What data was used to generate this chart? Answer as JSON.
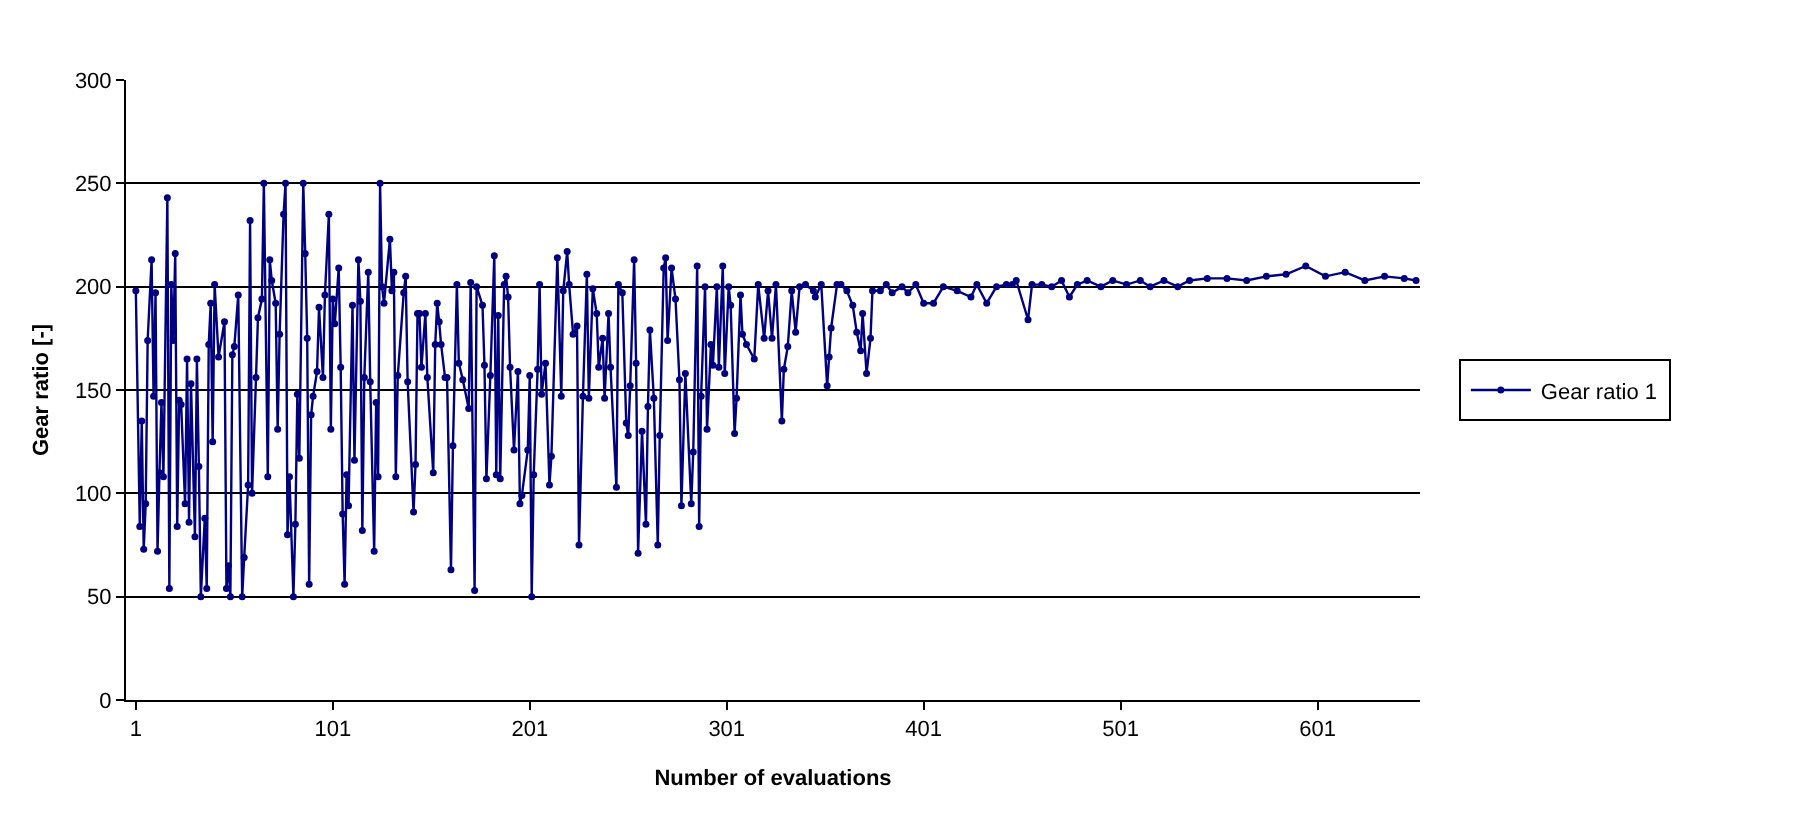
{
  "chart_data": {
    "type": "line",
    "xlabel": "Number of evaluations",
    "ylabel": "Gear ratio [-]",
    "xlim": [
      -4,
      653
    ],
    "xticks": [
      1,
      101,
      201,
      301,
      401,
      501,
      601
    ],
    "ylim": [
      0,
      300
    ],
    "yticks": [
      0,
      50,
      100,
      150,
      200,
      250,
      300
    ],
    "grid": "y",
    "legend": "right",
    "marker": "circle",
    "line_style": "solid",
    "series": [
      {
        "name": "Gear ratio 1",
        "color": "#000080",
        "x": [
          1,
          3,
          4,
          5,
          6,
          7,
          9,
          10,
          11,
          12,
          13,
          14,
          15,
          17,
          18,
          19,
          20,
          21,
          22,
          23,
          24,
          26,
          27,
          28,
          29,
          31,
          32,
          33,
          34,
          36,
          37,
          38,
          39,
          40,
          41,
          43,
          46,
          47,
          48,
          49,
          50,
          51,
          53,
          55,
          56,
          58,
          59,
          60,
          62,
          63,
          65,
          66,
          68,
          69,
          70,
          72,
          73,
          74,
          76,
          77,
          78,
          79,
          81,
          82,
          83,
          84,
          86,
          87,
          88,
          89,
          90,
          91,
          93,
          94,
          96,
          97,
          99,
          100,
          101,
          102,
          104,
          105,
          106,
          107,
          108,
          109,
          111,
          112,
          114,
          115,
          116,
          117,
          119,
          120,
          122,
          123,
          124,
          125,
          126,
          127,
          130,
          131,
          132,
          133,
          134,
          137,
          138,
          139,
          142,
          143,
          144,
          145,
          146,
          148,
          149,
          152,
          153,
          154,
          155,
          156,
          158,
          159,
          161,
          162,
          164,
          165,
          167,
          170,
          171,
          173,
          174,
          177,
          178,
          179,
          181,
          183,
          184,
          185,
          186,
          188,
          189,
          190,
          191,
          193,
          195,
          196,
          197,
          200,
          201,
          202,
          203,
          205,
          206,
          207,
          209,
          211,
          212,
          215,
          217,
          218,
          220,
          221,
          223,
          225,
          226,
          228,
          230,
          231,
          233,
          235,
          236,
          238,
          239,
          241,
          242,
          245,
          246,
          248,
          250,
          251,
          252,
          254,
          255,
          256,
          258,
          260,
          261,
          262,
          264,
          266,
          267,
          269,
          270,
          271,
          273,
          275,
          277,
          278,
          280,
          283,
          284,
          286,
          287,
          288,
          290,
          291,
          293,
          294,
          296,
          297,
          299,
          300,
          302,
          303,
          305,
          306,
          308,
          309,
          311,
          315,
          317,
          320,
          322,
          324,
          326,
          329,
          330,
          332,
          334,
          336,
          338,
          341,
          345,
          346,
          349,
          352,
          353,
          354,
          357,
          359,
          362,
          365,
          367,
          369,
          370,
          372,
          374,
          375,
          379,
          382,
          385,
          390,
          393,
          397,
          401,
          406,
          411,
          418,
          425,
          428,
          433,
          438,
          443,
          446,
          448,
          454,
          456,
          461,
          466,
          471,
          475,
          479,
          484,
          491,
          497,
          504,
          511,
          516,
          523,
          530,
          536,
          545,
          555,
          565,
          575,
          585,
          595,
          605,
          615,
          625,
          635,
          645,
          651
        ],
        "values": [
          198,
          84,
          135,
          73,
          95,
          174,
          213,
          147,
          197,
          72,
          110,
          144,
          108,
          243,
          54,
          201,
          174,
          216,
          84,
          145,
          143,
          95,
          165,
          86,
          153,
          79,
          165,
          113,
          50,
          88,
          54,
          172,
          192,
          125,
          201,
          166,
          183,
          54,
          65,
          50,
          167,
          171,
          196,
          50,
          69,
          104,
          232,
          100,
          156,
          185,
          194,
          250,
          108,
          213,
          203,
          192,
          131,
          177,
          235,
          250,
          80,
          108,
          50,
          85,
          148,
          117,
          250,
          216,
          175,
          56,
          138,
          147,
          159,
          190,
          156,
          196,
          235,
          131,
          194,
          182,
          209,
          161,
          90,
          56,
          109,
          94,
          191,
          116,
          213,
          193,
          82,
          156,
          207,
          154,
          72,
          144,
          108,
          250,
          200,
          192,
          223,
          198,
          207,
          108,
          157,
          197,
          205,
          154,
          91,
          114,
          187,
          187,
          161,
          187,
          156,
          110,
          172,
          192,
          183,
          172,
          156,
          156,
          63,
          123,
          201,
          163,
          155,
          141,
          202,
          53,
          200,
          191,
          162,
          107,
          157,
          215,
          109,
          186,
          107,
          201,
          205,
          195,
          161,
          121,
          159,
          95,
          99,
          121,
          157,
          50,
          109,
          160,
          201,
          148,
          163,
          104,
          118,
          214,
          147,
          198,
          217,
          201,
          177,
          181,
          75,
          147,
          206,
          146,
          199,
          187,
          161,
          175,
          146,
          187,
          161,
          103,
          201,
          197,
          134,
          128,
          152,
          213,
          163,
          71,
          130,
          85,
          142,
          179,
          146,
          75,
          128,
          209,
          214,
          174,
          209,
          194,
          155,
          94,
          158,
          95,
          120,
          210,
          84,
          147,
          200,
          131,
          172,
          162,
          200,
          161,
          210,
          158,
          200,
          191,
          129,
          146,
          196,
          177,
          172,
          165,
          201,
          175,
          198,
          175,
          201,
          135,
          160,
          171,
          198,
          178,
          200,
          201,
          198,
          195,
          201,
          152,
          166,
          180,
          201,
          201,
          198,
          191,
          178,
          169,
          187,
          158,
          175,
          198,
          198,
          201,
          197,
          200,
          197,
          201,
          192,
          192,
          200,
          198,
          195,
          201,
          192,
          200,
          201,
          201,
          203,
          184,
          201,
          201,
          200,
          203,
          195,
          201,
          203,
          200,
          203,
          201,
          203,
          200,
          203,
          200,
          203,
          204,
          204,
          203,
          205,
          206,
          210,
          205,
          207,
          203,
          205,
          204,
          203
        ]
      }
    ]
  }
}
